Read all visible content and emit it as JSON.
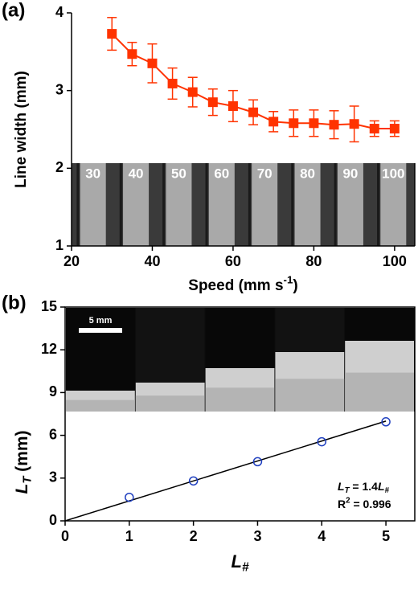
{
  "chart_data": [
    {
      "type": "line",
      "panel_label": "(a)",
      "x": [
        30,
        35,
        40,
        45,
        50,
        55,
        60,
        65,
        70,
        75,
        80,
        85,
        90,
        95,
        100
      ],
      "series": [
        {
          "color": "#ff3300",
          "values": [
            3.73,
            3.47,
            3.35,
            3.09,
            2.98,
            2.85,
            2.8,
            2.72,
            2.6,
            2.58,
            2.58,
            2.56,
            2.57,
            2.51,
            2.51
          ],
          "errors": [
            0.21,
            0.15,
            0.25,
            0.2,
            0.19,
            0.17,
            0.2,
            0.16,
            0.13,
            0.17,
            0.17,
            0.18,
            0.23,
            0.1,
            0.1
          ]
        }
      ],
      "xlim": [
        20,
        105
      ],
      "xticks": [
        20,
        40,
        60,
        80,
        100
      ],
      "ylim": [
        1,
        4
      ],
      "yticks": [
        1,
        2,
        3,
        4
      ],
      "xlabel": {
        "text": "Speed (mm s",
        "sup": "-1",
        "tail": ")"
      },
      "ylabel": "Line width (mm)",
      "inset_labels": [
        "30",
        "40",
        "50",
        "60",
        "70",
        "80",
        "90",
        "100"
      ]
    },
    {
      "type": "scatter",
      "panel_label": "(b)",
      "x": [
        1,
        2,
        3,
        4,
        5
      ],
      "series": [
        {
          "color": "#1f3fbf",
          "values": [
            1.65,
            2.8,
            4.15,
            5.55,
            6.95
          ]
        }
      ],
      "fit": {
        "x": [
          0,
          5
        ],
        "values": [
          0,
          7
        ],
        "color": "#000000"
      },
      "xlim": [
        0,
        5.45
      ],
      "xticks": [
        0,
        1,
        2,
        3,
        4,
        5
      ],
      "ylim": [
        0,
        15
      ],
      "yticks": [
        0,
        3,
        6,
        9,
        12,
        15
      ],
      "xlabel": {
        "main": "L",
        "sub": "#"
      },
      "ylabel": {
        "main": "L",
        "sub": "T",
        "tail": " (mm)"
      },
      "equation": {
        "main": "L",
        "sub": "T",
        "mid": " = 1.4",
        "main2": "L",
        "sub2": "#"
      },
      "r2": {
        "main": "R",
        "sup": "2",
        "tail": " = 0.996"
      },
      "scale_bar": "5 mm"
    }
  ]
}
